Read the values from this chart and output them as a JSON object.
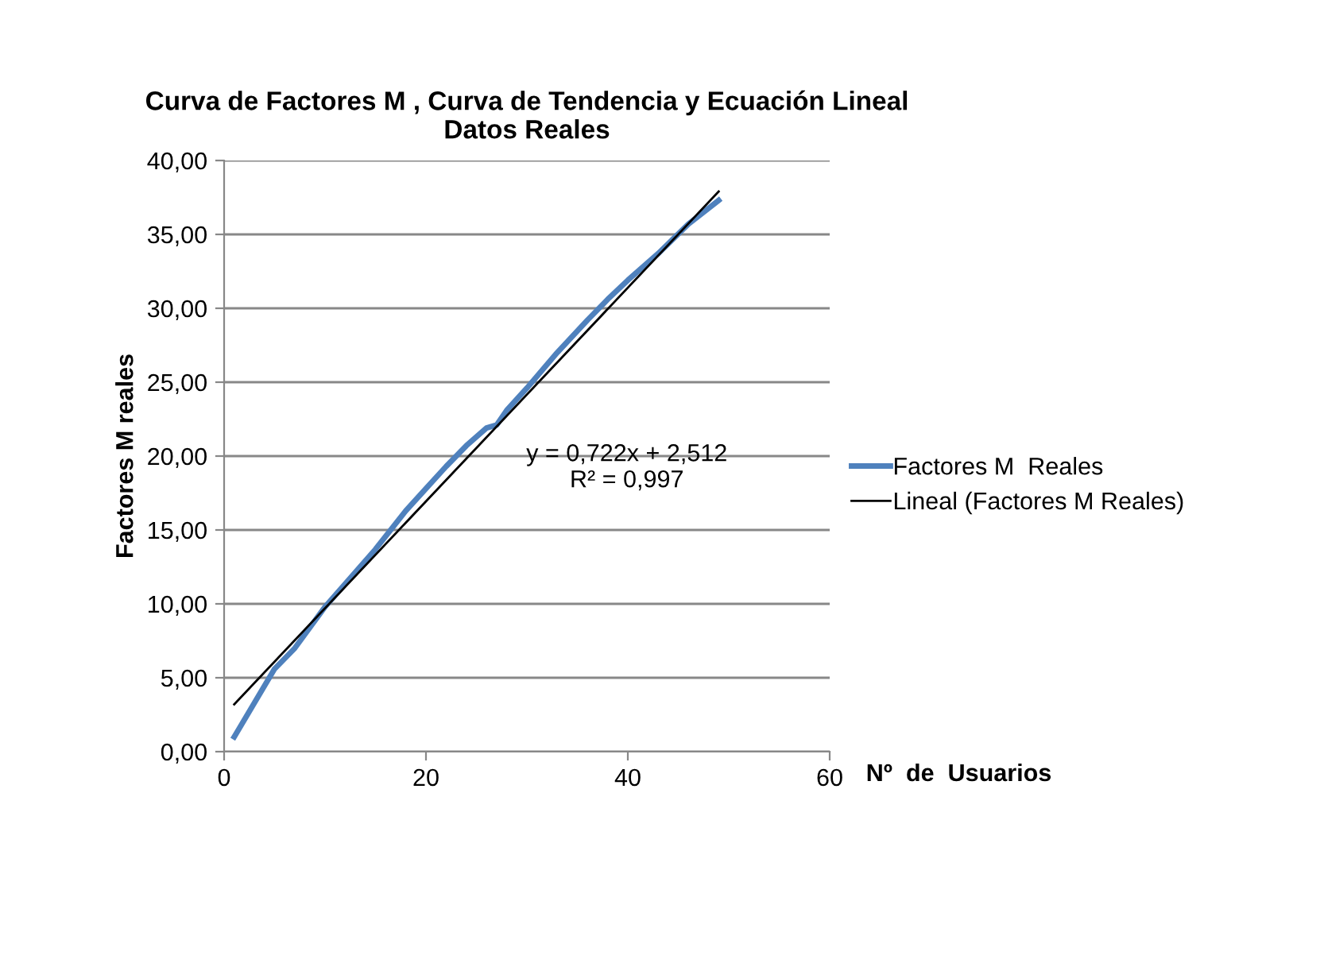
{
  "chart_data": {
    "type": "line",
    "title": "Curva de Factores M , Curva de Tendencia y Ecuación Lineal\nDatos Reales",
    "xlabel": "Nº  de  Usuarios",
    "ylabel": "Factores M reales",
    "series": [
      {
        "name": "Factores M  Reales",
        "color": "#4f81bd",
        "x": [
          1,
          5,
          7,
          10,
          15,
          18,
          20,
          22,
          24,
          26,
          27,
          28,
          30,
          33,
          36,
          38,
          40,
          43,
          46,
          49
        ],
        "values": [
          1,
          5.6,
          7,
          9.8,
          13.7,
          16.3,
          17.8,
          19.3,
          20.7,
          21.9,
          22.1,
          23.1,
          24.6,
          27,
          29.2,
          30.6,
          31.9,
          33.7,
          35.7,
          37.3
        ]
      },
      {
        "name": "Lineal (Factores M Reales)",
        "color": "#000000",
        "x": [
          1,
          49
        ],
        "values": [
          3.2,
          37.9
        ]
      }
    ],
    "annotations": [
      "y = 0,722x + 2,512\nR² = 0,997"
    ],
    "xlim": [
      0,
      60
    ],
    "xticks": [
      0,
      20,
      40,
      60
    ],
    "ylim": [
      0,
      40
    ],
    "yticks": [
      {
        "value": 0,
        "label": "0,00"
      },
      {
        "value": 5,
        "label": "5,00"
      },
      {
        "value": 10,
        "label": "10,00"
      },
      {
        "value": 15,
        "label": "15,00"
      },
      {
        "value": 20,
        "label": "20,00"
      },
      {
        "value": 25,
        "label": "25,00"
      },
      {
        "value": 30,
        "label": "30,00"
      },
      {
        "value": 35,
        "label": "35,00"
      },
      {
        "value": 40,
        "label": "40,00"
      }
    ],
    "grid": "y",
    "legend": "right",
    "marker": "none",
    "line_style": "solid"
  }
}
